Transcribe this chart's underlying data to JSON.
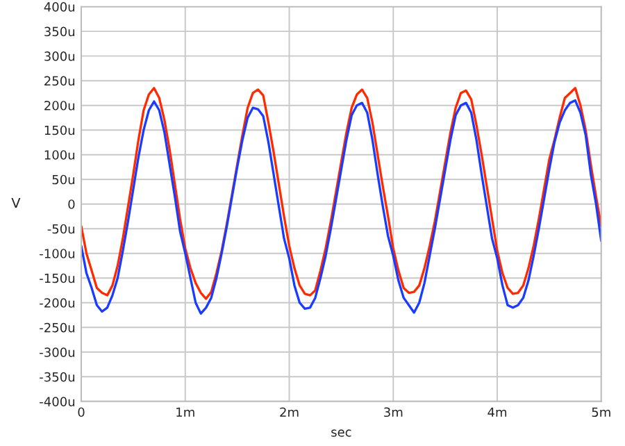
{
  "chart_data": {
    "type": "line",
    "xlabel": "sec",
    "ylabel": "V",
    "x": [
      0,
      0.05,
      0.1,
      0.15,
      0.2,
      0.25,
      0.3,
      0.35,
      0.4,
      0.45,
      0.5,
      0.55,
      0.6,
      0.65,
      0.7,
      0.75,
      0.8,
      0.85,
      0.9,
      0.95,
      1,
      1.05,
      1.1,
      1.15,
      1.2,
      1.25,
      1.3,
      1.35,
      1.4,
      1.45,
      1.5,
      1.55,
      1.6,
      1.65,
      1.7,
      1.75,
      1.8,
      1.85,
      1.9,
      1.95,
      2,
      2.05,
      2.1,
      2.15,
      2.2,
      2.25,
      2.3,
      2.35,
      2.4,
      2.45,
      2.5,
      2.55,
      2.6,
      2.65,
      2.7,
      2.75,
      2.8,
      2.85,
      2.9,
      2.95,
      3,
      3.05,
      3.1,
      3.15,
      3.2,
      3.25,
      3.3,
      3.35,
      3.4,
      3.45,
      3.5,
      3.55,
      3.6,
      3.65,
      3.7,
      3.75,
      3.8,
      3.85,
      3.9,
      3.95,
      4,
      4.05,
      4.1,
      4.15,
      4.2,
      4.25,
      4.3,
      4.35,
      4.4,
      4.45,
      4.5,
      4.55,
      4.6,
      4.65,
      4.7,
      4.75,
      4.8,
      4.85,
      4.9,
      4.95,
      5
    ],
    "series": [
      {
        "color": "#ff2a00",
        "values": [
          -45,
          -100,
          -135,
          -170,
          -180,
          -185,
          -165,
          -125,
          -70,
          -5,
          60,
          130,
          190,
          222,
          235,
          215,
          170,
          110,
          40,
          -30,
          -90,
          -130,
          -160,
          -180,
          -192,
          -178,
          -140,
          -95,
          -40,
          20,
          80,
          140,
          195,
          225,
          232,
          220,
          165,
          105,
          40,
          -25,
          -85,
          -130,
          -165,
          -182,
          -185,
          -175,
          -135,
          -90,
          -35,
          25,
          85,
          145,
          195,
          222,
          232,
          215,
          165,
          100,
          35,
          -25,
          -90,
          -135,
          -170,
          -180,
          -178,
          -165,
          -130,
          -85,
          -35,
          25,
          85,
          145,
          195,
          225,
          230,
          212,
          160,
          100,
          35,
          -30,
          -95,
          -140,
          -170,
          -182,
          -180,
          -165,
          -130,
          -85,
          -30,
          30,
          90,
          130,
          175,
          215,
          225,
          235,
          200,
          150,
          80,
          15,
          -45
        ]
      },
      {
        "color": "#1a3cff",
        "values": [
          -85,
          -140,
          -170,
          -205,
          -218,
          -210,
          -185,
          -150,
          -95,
          -35,
          30,
          95,
          150,
          190,
          208,
          190,
          145,
          80,
          15,
          -55,
          -100,
          -150,
          -200,
          -222,
          -210,
          -190,
          -150,
          -100,
          -45,
          15,
          75,
          130,
          175,
          195,
          192,
          178,
          125,
          60,
          -5,
          -70,
          -110,
          -165,
          -200,
          -212,
          -210,
          -190,
          -150,
          -105,
          -50,
          10,
          70,
          130,
          180,
          200,
          205,
          185,
          130,
          60,
          -5,
          -65,
          -105,
          -155,
          -190,
          -205,
          -220,
          -200,
          -160,
          -105,
          -50,
          10,
          70,
          130,
          180,
          200,
          205,
          185,
          130,
          60,
          -5,
          -70,
          -110,
          -165,
          -205,
          -210,
          -205,
          -190,
          -155,
          -105,
          -50,
          10,
          70,
          125,
          165,
          190,
          205,
          210,
          185,
          140,
          60,
          0,
          -75
        ]
      }
    ],
    "xlim": [
      0,
      5
    ],
    "xticks": [
      0,
      {
        "value": 1,
        "label": "1m"
      },
      {
        "value": 2,
        "label": "2m"
      },
      {
        "value": 3,
        "label": "3m"
      },
      {
        "value": 4,
        "label": "4m"
      },
      {
        "value": 5,
        "label": "5m"
      }
    ],
    "ylim": [
      -400,
      400
    ],
    "yticks": [
      {
        "value": -400,
        "label": "-400u"
      },
      {
        "value": -350,
        "label": "-350u"
      },
      {
        "value": -300,
        "label": "-300u"
      },
      {
        "value": -250,
        "label": "-250u"
      },
      {
        "value": -200,
        "label": "-200u"
      },
      {
        "value": -150,
        "label": "-150u"
      },
      {
        "value": -100,
        "label": "-100u"
      },
      {
        "value": -50,
        "label": "-50u"
      },
      0,
      {
        "value": 50,
        "label": "50u"
      },
      {
        "value": 100,
        "label": "100u"
      },
      {
        "value": 150,
        "label": "150u"
      },
      {
        "value": 200,
        "label": "200u"
      },
      {
        "value": 250,
        "label": "250u"
      },
      {
        "value": 300,
        "label": "300u"
      },
      {
        "value": 350,
        "label": "350u"
      },
      {
        "value": 400,
        "label": "400u"
      }
    ],
    "grid": true,
    "marker": "none",
    "line_style": "solid"
  }
}
